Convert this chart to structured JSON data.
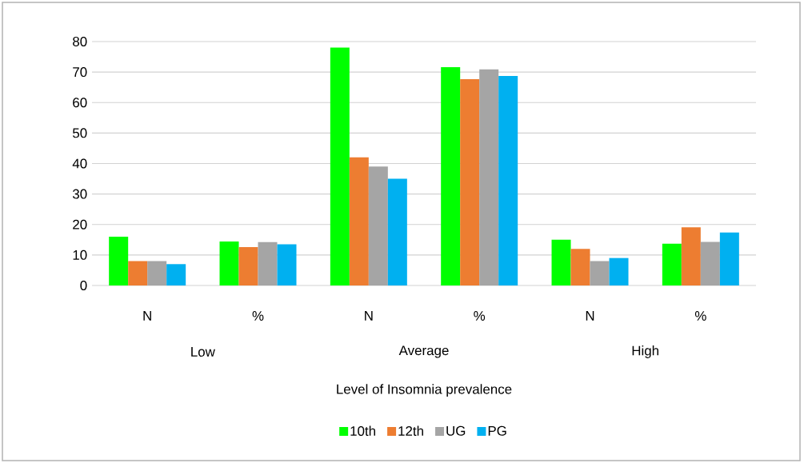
{
  "chart_data": {
    "type": "bar",
    "xlabel": "Level of Insomnia prevalence",
    "categories": [
      "N",
      "%",
      "N",
      "%",
      "N",
      "%"
    ],
    "annotations": [
      "Low",
      "Average",
      "High"
    ],
    "series": [
      {
        "name": "10th",
        "color": "#00ff00",
        "values": [
          16,
          14.4,
          78,
          71.6,
          15,
          13.7
        ]
      },
      {
        "name": "12th",
        "color": "#ed7d31",
        "values": [
          8,
          12.6,
          42,
          67.7,
          12,
          19.1
        ]
      },
      {
        "name": "UG",
        "color": "#a5a5a5",
        "values": [
          8,
          14.2,
          39,
          70.9,
          8,
          14.3
        ]
      },
      {
        "name": "PG",
        "color": "#00b0f0",
        "values": [
          7,
          13.5,
          35,
          68.7,
          9,
          17.4
        ]
      }
    ],
    "ylim": [
      0,
      80
    ],
    "yticks": [
      0,
      10,
      20,
      30,
      40,
      50,
      60,
      70,
      80
    ],
    "grid": "y",
    "legend": "bottom"
  }
}
